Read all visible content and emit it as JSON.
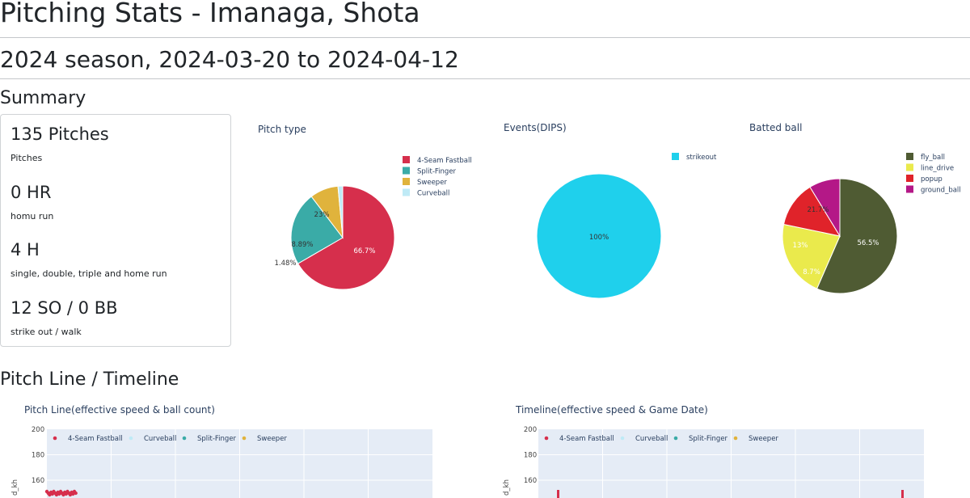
{
  "header": {
    "title": "Pitching Stats - Imanaga, Shota",
    "subtitle": "2024 season, 2024-03-20 to 2024-04-12"
  },
  "summary": {
    "heading": "Summary",
    "stats": [
      {
        "value": "135 Pitches",
        "label": "Pitches"
      },
      {
        "value": "0 HR",
        "label": "homu run"
      },
      {
        "value": "4 H",
        "label": "single, double, triple and home run"
      },
      {
        "value": "12 SO / 0 BB",
        "label": "strike out / walk"
      }
    ]
  },
  "section2": {
    "heading": "Pitch Line / Timeline"
  },
  "colors": {
    "fastball": "#d62f4c",
    "split": "#3aaba7",
    "sweeper": "#e0b33c",
    "curveball": "#bfeaf6",
    "strikeout": "#1fd0ec",
    "fly_ball": "#4f5b33",
    "line_drive": "#eaea4c",
    "popup": "#e0232a",
    "ground_ball": "#b41887",
    "plot_bg": "#e5ecf6"
  },
  "chart_data": [
    {
      "type": "pie",
      "title": "Pitch type",
      "labels": [
        "4-Seam Fastball",
        "Split-Finger",
        "Sweeper",
        "Curveball"
      ],
      "values": [
        66.7,
        23,
        8.89,
        1.48
      ],
      "text": [
        "66.7%",
        "23%",
        "8.89%",
        "1.48%"
      ],
      "legend": "top-right"
    },
    {
      "type": "pie",
      "title": "Events(DIPS)",
      "labels": [
        "strikeout"
      ],
      "values": [
        100
      ],
      "text": [
        "100%"
      ],
      "legend": "top-right"
    },
    {
      "type": "pie",
      "title": "Batted ball",
      "labels": [
        "fly_ball",
        "line_drive",
        "popup",
        "ground_ball"
      ],
      "values": [
        56.5,
        21.7,
        13,
        8.7
      ],
      "text": [
        "56.5%",
        "21.7%",
        "13%",
        "8.7%"
      ],
      "legend": "top-right"
    },
    {
      "type": "scatter",
      "title": "Pitch Line(effective speed & ball count)",
      "legend": [
        "4-Seam Fastball",
        "Curveball",
        "Split-Finger",
        "Sweeper"
      ],
      "ytick_labels": [
        "200",
        "180",
        "160"
      ],
      "ylabel": "d_kh",
      "grid": true
    },
    {
      "type": "scatter",
      "title": "Timeline(effective speed & Game Date)",
      "legend": [
        "4-Seam Fastball",
        "Curveball",
        "Split-Finger",
        "Sweeper"
      ],
      "ytick_labels": [
        "200",
        "180",
        "160"
      ],
      "ylabel": "d_kh",
      "grid": true
    }
  ]
}
